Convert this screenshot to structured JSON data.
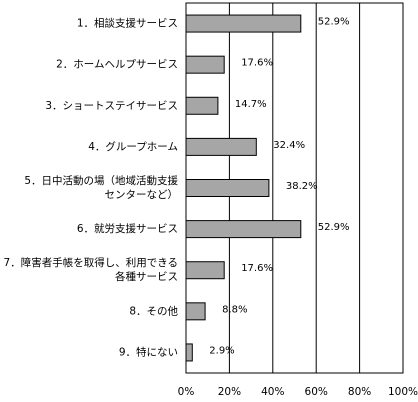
{
  "chart_data": {
    "type": "bar",
    "orientation": "horizontal",
    "categories": [
      [
        "1．相談支援サービス"
      ],
      [
        "2．ホームヘルプサービス"
      ],
      [
        "3．ショートステイサービス"
      ],
      [
        "4．グループホーム"
      ],
      [
        "5．日中活動の場（地域活動支援",
        "センターなど）"
      ],
      [
        "6．就労支援サービス"
      ],
      [
        "7．障害者手帳を取得し、利用できる",
        "各種サービス"
      ],
      [
        "8．その他"
      ],
      [
        "9．特にない"
      ]
    ],
    "values": [
      52.9,
      17.6,
      14.7,
      32.4,
      38.2,
      52.9,
      17.6,
      8.8,
      2.9
    ],
    "value_labels": [
      "52.9%",
      "17.6%",
      "14.7%",
      "32.4%",
      "38.2%",
      "52.9%",
      "17.6%",
      "8.8%",
      "2.9%"
    ],
    "xlim": [
      0,
      100
    ],
    "xticks": [
      0,
      20,
      40,
      60,
      80,
      100
    ],
    "xtick_labels": [
      "0%",
      "20%",
      "40%",
      "60%",
      "80%",
      "100%"
    ],
    "grid": true,
    "bar_color": "#a6a6a6",
    "bar_edge_color": "#000000",
    "grid_color": "#000000"
  }
}
